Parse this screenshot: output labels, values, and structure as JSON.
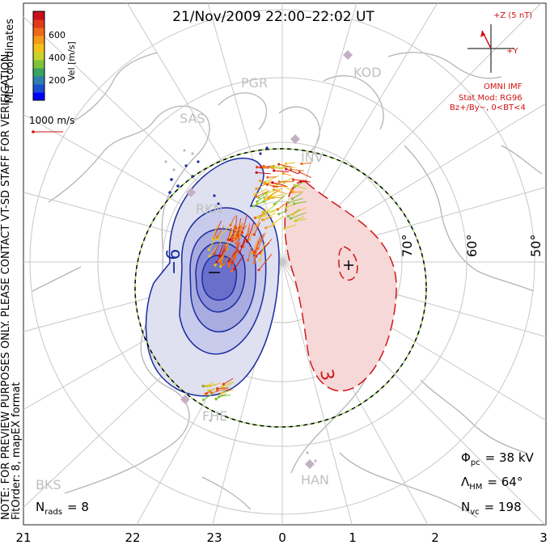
{
  "title": "21/Nov/2009 22:00–22:02 UT",
  "colorbar": {
    "label": "Vel [m/s]",
    "ticks": [
      "600",
      "400",
      "200"
    ],
    "colors": [
      "#0000ff",
      "#1b4fcf",
      "#2e7fb0",
      "#3aa360",
      "#7dc23a",
      "#c8d22a",
      "#f2c21a",
      "#f59a18",
      "#ef6a18",
      "#e23a1a",
      "#c8101a"
    ]
  },
  "coordinates_label": "MLT coordinates",
  "velocity_scale": "1000 m/s",
  "watermark": "NOTE: FOR PREVIEW PURPOSES ONLY. PLEASE CONTACT VT-SD STAFF FOR VERIFICATION.",
  "fit_info": "FitOrder: 8, mapEX format",
  "imf": {
    "z_label": "+Z (5 nT)",
    "y_label": "+Y",
    "source": "OMNI IMF",
    "model": "Stat Mod: RG96",
    "condition": "Bz+/By−, 0<BT<4"
  },
  "stations": [
    "PGR",
    "KOD",
    "SAS",
    "INV",
    "RKN",
    "FHE",
    "BKS",
    "HAN"
  ],
  "latitude_labels": [
    "70°",
    "60°",
    "50°"
  ],
  "contour_labels": {
    "negative": "−6",
    "positive": "3"
  },
  "stats": {
    "phi_pc": {
      "symbol": "Φ",
      "sub": "pc",
      "value": "= 38 kV"
    },
    "lambda_hm": {
      "symbol": "Λ",
      "sub": "HM",
      "value": "= 64°"
    },
    "n_vc": {
      "symbol": "N",
      "sub": "vc",
      "value": "= 198"
    },
    "n_rads": {
      "symbol": "N",
      "sub": "rads",
      "value": "= 8"
    }
  },
  "mlt_axis": [
    "21",
    "22",
    "23",
    "0",
    "1",
    "2",
    "3"
  ],
  "colors": {
    "grid": "#c8c8c8",
    "land": "#b4b4b4",
    "negative_fill": "#dfe0f0",
    "negative_line": "#1a2ca0",
    "positive_fill": "#f6d8d8",
    "positive_line": "#cc1a1a",
    "hmb_dash": "#8ad23a",
    "imf_text": "#d01010"
  }
}
